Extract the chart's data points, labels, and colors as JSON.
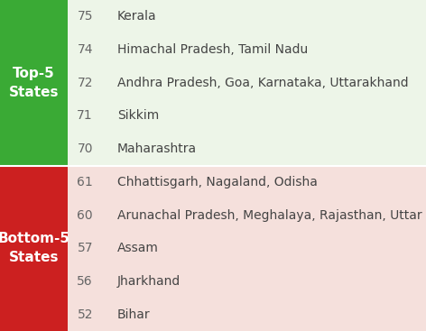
{
  "top_rows": [
    {
      "score": "75",
      "states": "Kerala"
    },
    {
      "score": "74",
      "states": "Himachal Pradesh, Tamil Nadu"
    },
    {
      "score": "72",
      "states": "Andhra Pradesh, Goa, Karnataka, Uttarakhand"
    },
    {
      "score": "71",
      "states": "Sikkim"
    },
    {
      "score": "70",
      "states": "Maharashtra"
    }
  ],
  "bottom_rows": [
    {
      "score": "61",
      "states": "Chhattisgarh, Nagaland, Odisha"
    },
    {
      "score": "60",
      "states": "Arunachal Pradesh, Meghalaya, Rajasthan, Uttar Pradesh"
    },
    {
      "score": "57",
      "states": "Assam"
    },
    {
      "score": "56",
      "states": "Jharkhand"
    },
    {
      "score": "52",
      "states": "Bihar"
    }
  ],
  "top_label": "Top-5\nStates",
  "bottom_label": "Bottom-5\nStates",
  "top_sidebar_color": "#3aaa35",
  "bottom_sidebar_color": "#cc2020",
  "top_bg_color": "#edf5e8",
  "bottom_bg_color": "#f5e0dc",
  "score_color": "#666666",
  "state_color": "#444444",
  "label_color": "#ffffff",
  "font_size_score": 10,
  "font_size_states": 10,
  "font_size_label": 11
}
